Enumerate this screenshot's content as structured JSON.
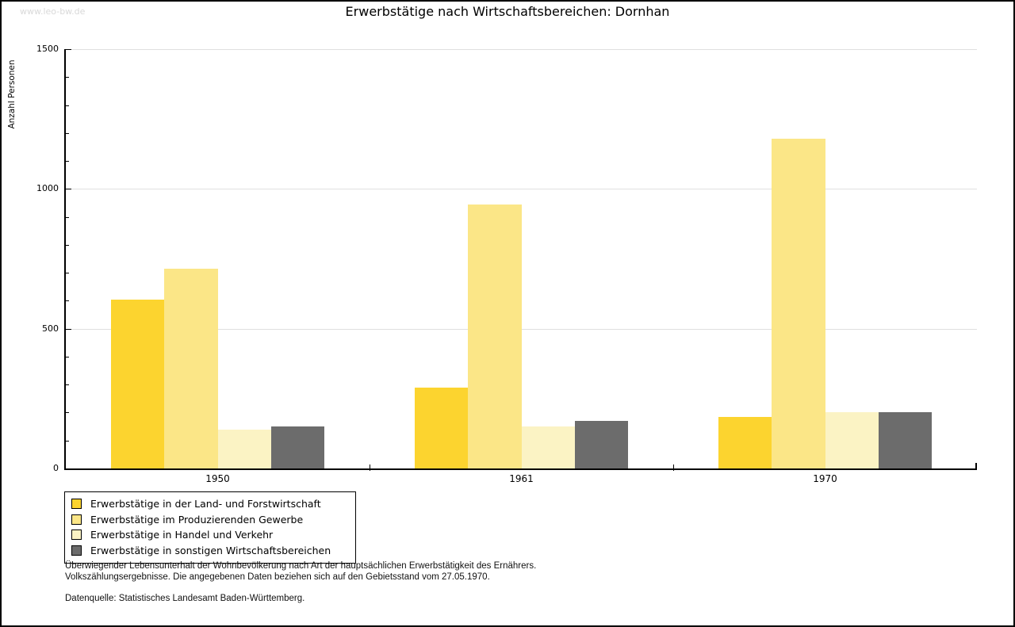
{
  "watermark": "www.leo-bw.de",
  "title": "Erwerbstätige nach Wirtschaftsbereichen: Dornhan",
  "chart_data": {
    "type": "bar",
    "title": "Erwerbstätige nach Wirtschaftsbereichen: Dornhan",
    "xlabel": "",
    "ylabel": "Anzahl Personen",
    "ylim": [
      0,
      1500
    ],
    "y_ticks": [
      0,
      500,
      1000,
      1500
    ],
    "y_minor_step": 100,
    "grid": true,
    "legend_position": "bottom-left",
    "categories": [
      "1950",
      "1961",
      "1970"
    ],
    "series": [
      {
        "name": "Erwerbstätige in der Land- und Forstwirtschaft",
        "color": "#FCD42F",
        "values": [
          605,
          290,
          185
        ]
      },
      {
        "name": "Erwerbstätige im Produzierenden Gewerbe",
        "color": "#FBE687",
        "values": [
          715,
          945,
          1180
        ]
      },
      {
        "name": "Erwerbstätige in Handel und Verkehr",
        "color": "#FBF3C4",
        "values": [
          140,
          150,
          200
        ]
      },
      {
        "name": "Erwerbstätige in sonstigen Wirtschaftsbereichen",
        "color": "#6C6C6C",
        "values": [
          150,
          170,
          200
        ]
      }
    ]
  },
  "footnotes": {
    "line1": "Überwiegender Lebensunterhalt der Wohnbevölkerung nach Art der hauptsächlichen Erwerbstätigkeit des Ernährers.",
    "line2": "Volkszählungsergebnisse. Die angegebenen Daten beziehen sich auf den Gebietsstand vom 27.05.1970.",
    "source": "Datenquelle: Statistisches Landesamt Baden-Württemberg."
  },
  "colors": {
    "grid": "#E0E0E0",
    "axis": "#000000",
    "watermark": "#D9D9D9"
  }
}
